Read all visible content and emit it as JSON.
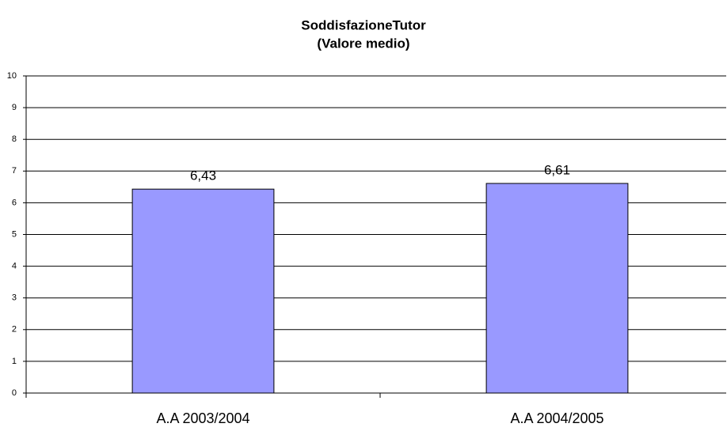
{
  "chart_data": {
    "type": "bar",
    "title": "SoddisfazioneTutor",
    "subtitle": "(Valore medio)",
    "categories": [
      "A.A 2003/2004",
      "A.A 2004/2005"
    ],
    "values": [
      6.43,
      6.61
    ],
    "value_labels": [
      "6,43",
      "6,61"
    ],
    "color": "#9999ff",
    "ylim": [
      0,
      10
    ],
    "yticks": [
      0,
      1,
      2,
      3,
      4,
      5,
      6,
      7,
      8,
      9,
      10
    ],
    "grid": true
  }
}
